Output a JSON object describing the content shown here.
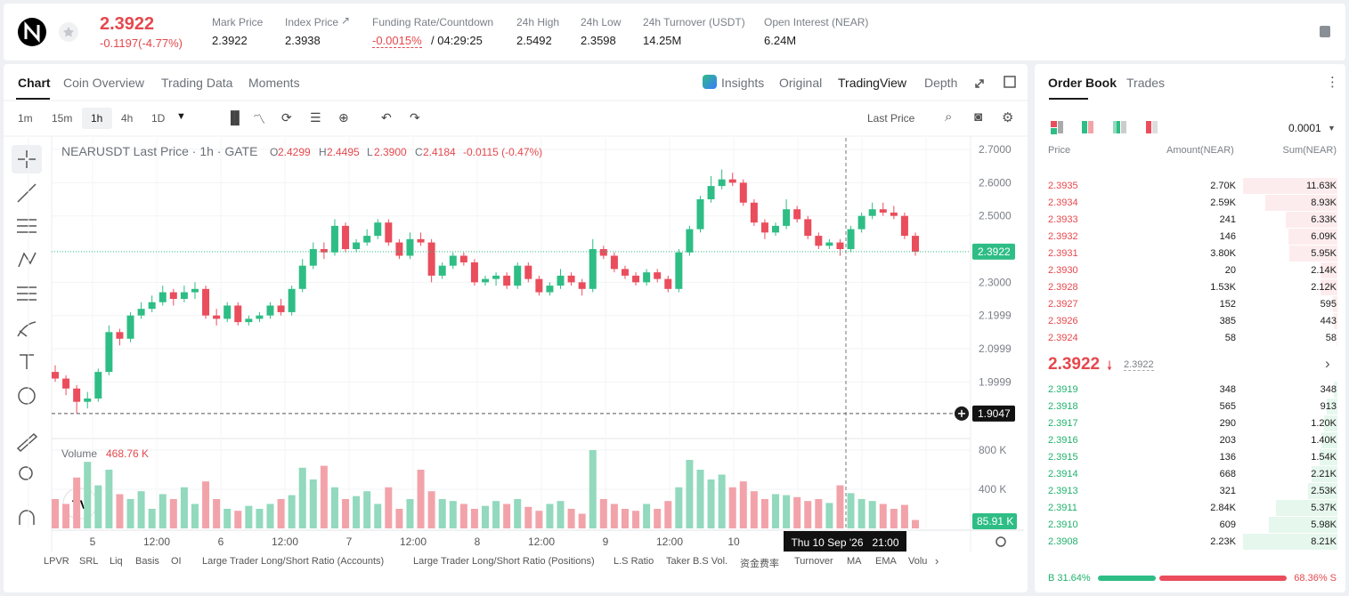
{
  "header": {
    "price": "2.3922",
    "change": "-0.1197(-4.77%)",
    "stats": [
      {
        "label": "Mark Price",
        "value": "2.3922"
      },
      {
        "label": "Index Price",
        "value": "2.3938"
      },
      {
        "label": "Funding Rate/Countdown",
        "value": "-0.0015%",
        "extra": "/ 04:29:25"
      },
      {
        "label": "24h High",
        "value": "2.5492"
      },
      {
        "label": "24h Low",
        "value": "2.3598"
      },
      {
        "label": "24h Turnover (USDT)",
        "value": "14.25M"
      },
      {
        "label": "Open Interest (NEAR)",
        "value": "6.24M"
      }
    ]
  },
  "tabs": [
    "Chart",
    "Coin Overview",
    "Trading Data",
    "Moments"
  ],
  "views": [
    "Insights",
    "Original",
    "TradingView",
    "Depth"
  ],
  "toolbar": {
    "intervals": [
      "1m",
      "15m",
      "1h",
      "4h",
      "1D"
    ],
    "price_type": "Last Price"
  },
  "legend": {
    "title": "NEARUSDT Last Price · 1h · GATE",
    "o_label": "O",
    "o": "2.4299",
    "h_label": "H",
    "h": "2.4495",
    "l_label": "L",
    "l": "2.3900",
    "c_label": "C",
    "c": "2.4184",
    "change": "-0.0115 (-0.47%)"
  },
  "chart_data": {
    "type": "candlestick",
    "up_color": "#2ebd85",
    "down_color": "#ea4d5c",
    "up_volume_color": "#92d9bd",
    "down_volume_color": "#f2a3aa",
    "ylim": [
      1.832,
      2.735
    ],
    "yticks": [
      {
        "value": 2.7,
        "label": "2.7000"
      },
      {
        "value": 2.6,
        "label": "2.6000"
      },
      {
        "value": 2.5,
        "label": "2.5000"
      },
      {
        "value": 2.3,
        "label": "2.3000"
      },
      2.1999,
      2.0999,
      1.9999
    ],
    "last_price": 2.3922,
    "crosshair_price": 1.9047,
    "crosshair_time": "Thu 10 Sep '26   21:00",
    "volume_title": "Volume",
    "volume_value": "468.76 K",
    "volume_last": "85.91 K",
    "vlim": [
      0,
      891
    ],
    "vticks": [
      {
        "value": 800,
        "label": "800 K"
      },
      {
        "value": 400,
        "label": "400 K"
      }
    ],
    "x_labels": [
      "5",
      "12:00",
      "6",
      "12:00",
      "7",
      "12:00",
      "8",
      "12:00",
      "9",
      "12:00",
      "10",
      "12:00"
    ],
    "ohlc": [
      [
        2.03,
        2.05,
        2.0,
        2.01
      ],
      [
        2.01,
        2.02,
        1.96,
        1.98
      ],
      [
        1.98,
        1.99,
        1.9047,
        1.94
      ],
      [
        1.94,
        1.97,
        1.92,
        1.95
      ],
      [
        1.95,
        2.04,
        1.94,
        2.03
      ],
      [
        2.03,
        2.17,
        2.02,
        2.15
      ],
      [
        2.15,
        2.16,
        2.11,
        2.13
      ],
      [
        2.13,
        2.21,
        2.12,
        2.2
      ],
      [
        2.2,
        2.24,
        2.19,
        2.22
      ],
      [
        2.22,
        2.26,
        2.21,
        2.24
      ],
      [
        2.24,
        2.29,
        2.23,
        2.27
      ],
      [
        2.27,
        2.28,
        2.23,
        2.25
      ],
      [
        2.25,
        2.29,
        2.24,
        2.27
      ],
      [
        2.27,
        2.3,
        2.25,
        2.28
      ],
      [
        2.28,
        2.29,
        2.19,
        2.2
      ],
      [
        2.2,
        2.22,
        2.17,
        2.19
      ],
      [
        2.19,
        2.24,
        2.18,
        2.23
      ],
      [
        2.23,
        2.24,
        2.17,
        2.18
      ],
      [
        2.18,
        2.2,
        2.17,
        2.19
      ],
      [
        2.19,
        2.21,
        2.18,
        2.2
      ],
      [
        2.2,
        2.24,
        2.19,
        2.23
      ],
      [
        2.23,
        2.25,
        2.2,
        2.21
      ],
      [
        2.21,
        2.29,
        2.2,
        2.28
      ],
      [
        2.28,
        2.37,
        2.27,
        2.35
      ],
      [
        2.35,
        2.42,
        2.34,
        2.4
      ],
      [
        2.4,
        2.42,
        2.37,
        2.39
      ],
      [
        2.39,
        2.49,
        2.38,
        2.47
      ],
      [
        2.47,
        2.48,
        2.39,
        2.4
      ],
      [
        2.4,
        2.43,
        2.39,
        2.42
      ],
      [
        2.42,
        2.46,
        2.41,
        2.44
      ],
      [
        2.44,
        2.49,
        2.43,
        2.48
      ],
      [
        2.48,
        2.49,
        2.41,
        2.42
      ],
      [
        2.42,
        2.43,
        2.37,
        2.38
      ],
      [
        2.38,
        2.45,
        2.37,
        2.43
      ],
      [
        2.43,
        2.45,
        2.41,
        2.42
      ],
      [
        2.42,
        2.43,
        2.3,
        2.32
      ],
      [
        2.32,
        2.36,
        2.31,
        2.35
      ],
      [
        2.35,
        2.39,
        2.34,
        2.38
      ],
      [
        2.38,
        2.39,
        2.35,
        2.36
      ],
      [
        2.36,
        2.37,
        2.29,
        2.3
      ],
      [
        2.3,
        2.32,
        2.29,
        2.31
      ],
      [
        2.31,
        2.33,
        2.29,
        2.32
      ],
      [
        2.32,
        2.33,
        2.28,
        2.29
      ],
      [
        2.29,
        2.36,
        2.28,
        2.35
      ],
      [
        2.35,
        2.36,
        2.3,
        2.31
      ],
      [
        2.31,
        2.32,
        2.26,
        2.27
      ],
      [
        2.27,
        2.3,
        2.26,
        2.29
      ],
      [
        2.29,
        2.34,
        2.28,
        2.32
      ],
      [
        2.32,
        2.33,
        2.29,
        2.3
      ],
      [
        2.3,
        2.31,
        2.26,
        2.28
      ],
      [
        2.28,
        2.43,
        2.27,
        2.4
      ],
      [
        2.4,
        2.41,
        2.37,
        2.38
      ],
      [
        2.38,
        2.39,
        2.33,
        2.34
      ],
      [
        2.34,
        2.35,
        2.31,
        2.32
      ],
      [
        2.32,
        2.33,
        2.29,
        2.3
      ],
      [
        2.3,
        2.34,
        2.29,
        2.33
      ],
      [
        2.33,
        2.34,
        2.3,
        2.31
      ],
      [
        2.31,
        2.32,
        2.27,
        2.28
      ],
      [
        2.28,
        2.4,
        2.27,
        2.39
      ],
      [
        2.39,
        2.47,
        2.38,
        2.46
      ],
      [
        2.46,
        2.56,
        2.45,
        2.55
      ],
      [
        2.55,
        2.62,
        2.54,
        2.59
      ],
      [
        2.59,
        2.64,
        2.58,
        2.61
      ],
      [
        2.61,
        2.63,
        2.59,
        2.6
      ],
      [
        2.6,
        2.61,
        2.53,
        2.54
      ],
      [
        2.54,
        2.55,
        2.47,
        2.48
      ],
      [
        2.48,
        2.49,
        2.43,
        2.45
      ],
      [
        2.45,
        2.48,
        2.44,
        2.47
      ],
      [
        2.47,
        2.55,
        2.46,
        2.52
      ],
      [
        2.52,
        2.53,
        2.48,
        2.49
      ],
      [
        2.49,
        2.5,
        2.43,
        2.44
      ],
      [
        2.44,
        2.45,
        2.4,
        2.41
      ],
      [
        2.41,
        2.43,
        2.4,
        2.42
      ],
      [
        2.42,
        2.43,
        2.38,
        2.4
      ],
      [
        2.4,
        2.47,
        2.39,
        2.46
      ],
      [
        2.46,
        2.51,
        2.45,
        2.5
      ],
      [
        2.5,
        2.54,
        2.49,
        2.52
      ],
      [
        2.52,
        2.54,
        2.5,
        2.51
      ],
      [
        2.51,
        2.53,
        2.49,
        2.5
      ],
      [
        2.5,
        2.51,
        2.43,
        2.44
      ],
      [
        2.44,
        2.45,
        2.38,
        2.3922
      ]
    ],
    "volume": [
      300,
      250,
      520,
      680,
      440,
      600,
      350,
      300,
      380,
      200,
      350,
      300,
      420,
      250,
      480,
      300,
      200,
      180,
      230,
      200,
      250,
      300,
      340,
      620,
      500,
      640,
      420,
      300,
      330,
      380,
      250,
      420,
      200,
      300,
      600,
      380,
      300,
      280,
      250,
      200,
      230,
      280,
      250,
      300,
      220,
      180,
      250,
      280,
      200,
      150,
      800,
      300,
      250,
      200,
      180,
      250,
      200,
      280,
      420,
      700,
      600,
      500,
      550,
      420,
      480,
      380,
      300,
      350,
      340,
      320,
      280,
      300,
      260,
      440,
      360,
      300,
      280,
      250,
      200,
      240,
      85.91
    ]
  },
  "indicators": [
    "LPVR",
    "SRL",
    "Liq",
    "Basis",
    "OI",
    "Large Trader Long/Short Ratio (Accounts)",
    "Large Trader Long/Short Ratio (Positions)",
    "L.S Ratio",
    "Taker B.S Vol.",
    "资金费率",
    "Turnover",
    "MA",
    "EMA",
    "Volu"
  ],
  "order_book": {
    "tabs": [
      "Order Book",
      "Trades"
    ],
    "precision": "0.0001",
    "columns": [
      "Price",
      "Amount(NEAR)",
      "Sum(NEAR)"
    ],
    "asks": [
      [
        "2.3935",
        "2.70K",
        "11.63K"
      ],
      [
        "2.3934",
        "2.59K",
        "8.93K"
      ],
      [
        "2.3933",
        "241",
        "6.33K"
      ],
      [
        "2.3932",
        "146",
        "6.09K"
      ],
      [
        "2.3931",
        "3.80K",
        "5.95K"
      ],
      [
        "2.3930",
        "20",
        "2.14K"
      ],
      [
        "2.3928",
        "1.53K",
        "2.12K"
      ],
      [
        "2.3927",
        "152",
        "595"
      ],
      [
        "2.3926",
        "385",
        "443"
      ],
      [
        "2.3924",
        "58",
        "58"
      ]
    ],
    "mid": "2.3922",
    "mark": "2.3922",
    "bids": [
      [
        "2.3919",
        "348",
        "348"
      ],
      [
        "2.3918",
        "565",
        "913"
      ],
      [
        "2.3917",
        "290",
        "1.20K"
      ],
      [
        "2.3916",
        "203",
        "1.40K"
      ],
      [
        "2.3915",
        "136",
        "1.54K"
      ],
      [
        "2.3914",
        "668",
        "2.21K"
      ],
      [
        "2.3913",
        "321",
        "2.53K"
      ],
      [
        "2.3911",
        "2.84K",
        "5.37K"
      ],
      [
        "2.3910",
        "609",
        "5.98K"
      ],
      [
        "2.3908",
        "2.23K",
        "8.21K"
      ]
    ],
    "buy": "B 31.64%",
    "sell": "68.36% S"
  }
}
